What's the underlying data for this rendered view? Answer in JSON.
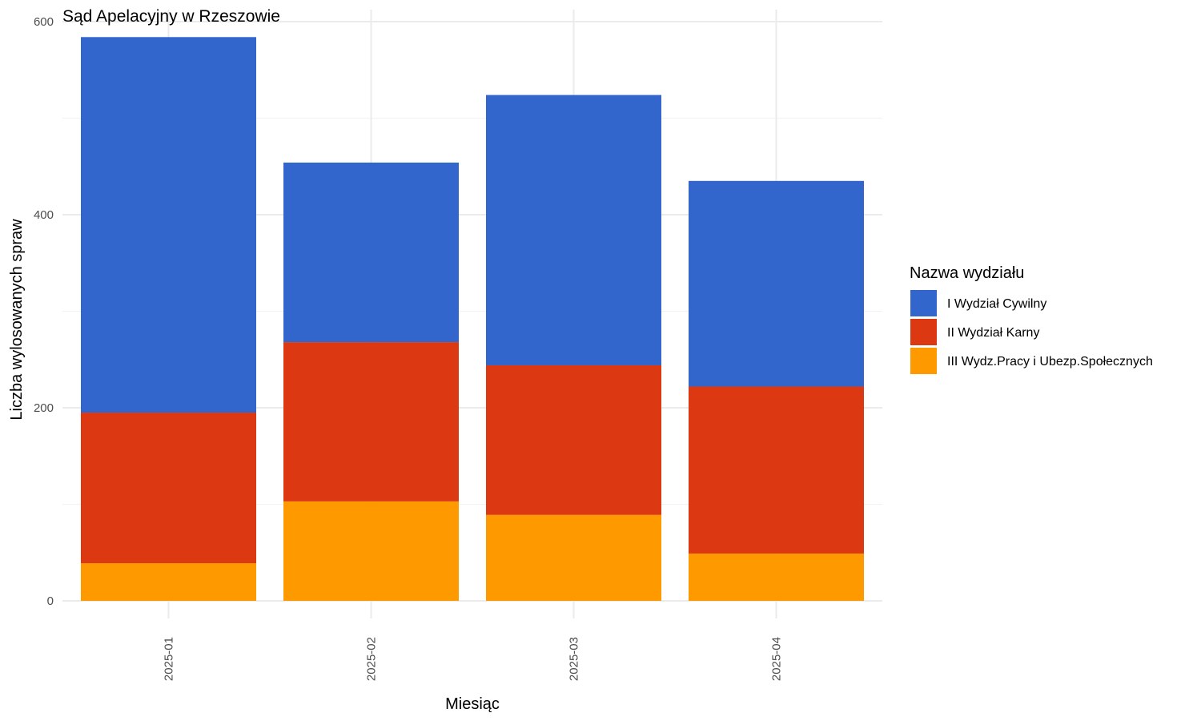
{
  "chart_data": {
    "type": "bar",
    "stacked": true,
    "title": "Sąd Apelacyjny w Rzeszowie",
    "xlabel": "Miesiąc",
    "ylabel": "Liczba wylosowanych spraw",
    "categories": [
      "2025-01",
      "2025-02",
      "2025-03",
      "2025-04"
    ],
    "ylim": [
      0,
      600
    ],
    "yticks": [
      "0",
      "200",
      "400",
      "600"
    ],
    "grid": true,
    "legend": {
      "title": "Nazwa wydziału",
      "position": "right"
    },
    "series": [
      {
        "name": "III Wydz.Pracy i Ubezp.Społecznych",
        "color": "#ff9900",
        "values": [
          39,
          103,
          89,
          49
        ]
      },
      {
        "name": "II Wydział Karny",
        "color": "#dc3912",
        "values": [
          156,
          165,
          155,
          173
        ]
      },
      {
        "name": "I Wydział Cywilny",
        "color": "#3366cc",
        "values": [
          389,
          186,
          280,
          213
        ]
      }
    ],
    "legend_order": [
      "I Wydział Cywilny",
      "II Wydział Karny",
      "III Wydz.Pracy i Ubezp.Społecznych"
    ]
  }
}
